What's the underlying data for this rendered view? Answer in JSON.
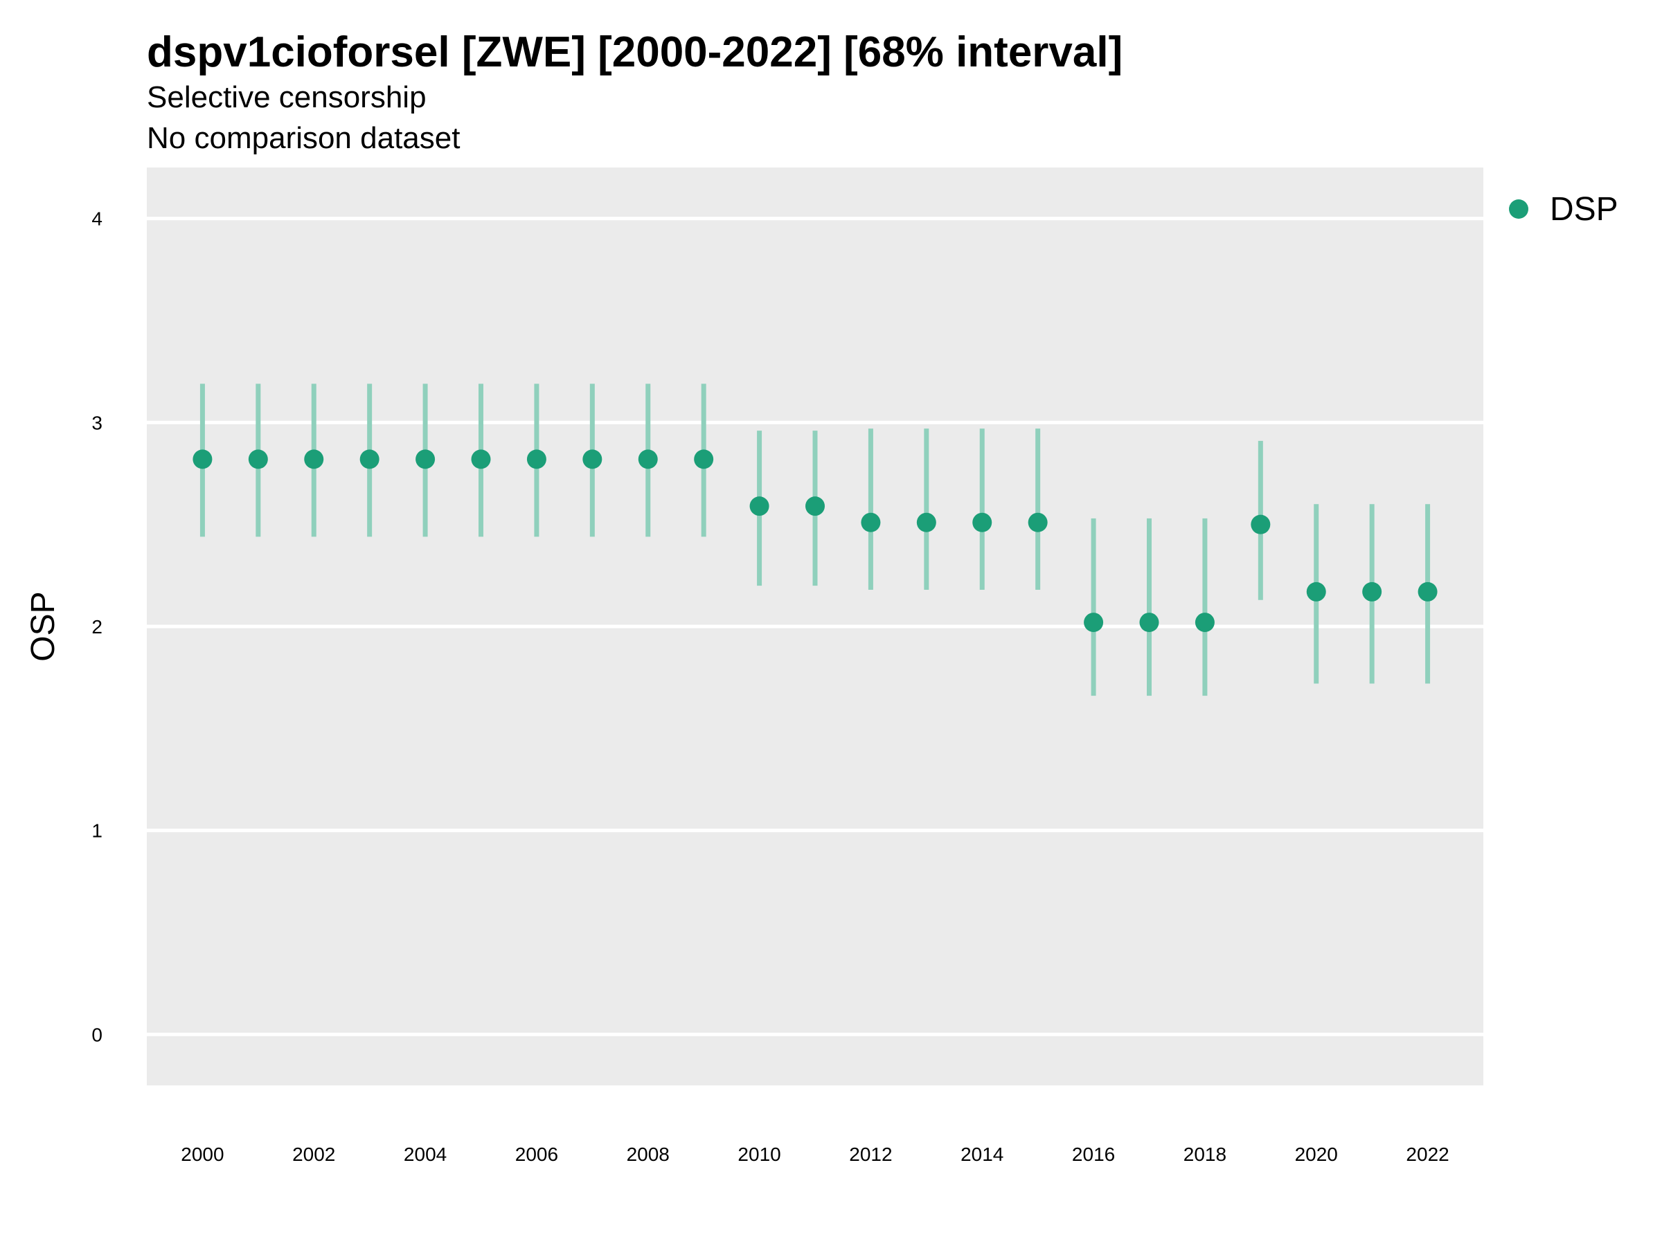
{
  "chart_data": {
    "type": "scatter",
    "title": "dspv1cioforsel [ZWE] [2000-2022] [68% interval]",
    "subtitle": "Selective censorship",
    "subtitle2": "No comparison dataset",
    "xlabel": "",
    "ylabel": "OSP",
    "ylim": [
      -0.25,
      4.25
    ],
    "yticks": [
      0,
      1,
      2,
      3,
      4
    ],
    "xlim": [
      1999,
      2023
    ],
    "xticks": [
      2000,
      2002,
      2004,
      2006,
      2008,
      2010,
      2012,
      2014,
      2016,
      2018,
      2020,
      2022
    ],
    "grid": true,
    "legend_position": "right",
    "colors": {
      "point": "#1b9e77",
      "interval": "#8fd0bc",
      "panel": "#ebebeb",
      "grid": "#ffffff"
    },
    "series": [
      {
        "name": "DSP",
        "x": [
          2000,
          2001,
          2002,
          2003,
          2004,
          2005,
          2006,
          2007,
          2008,
          2009,
          2010,
          2011,
          2012,
          2013,
          2014,
          2015,
          2016,
          2017,
          2018,
          2019,
          2020,
          2021,
          2022
        ],
        "y": [
          2.82,
          2.82,
          2.82,
          2.82,
          2.82,
          2.82,
          2.82,
          2.82,
          2.82,
          2.82,
          2.59,
          2.59,
          2.51,
          2.51,
          2.51,
          2.51,
          2.02,
          2.02,
          2.02,
          2.5,
          2.17,
          2.17,
          2.17
        ],
        "lower": [
          2.44,
          2.44,
          2.44,
          2.44,
          2.44,
          2.44,
          2.44,
          2.44,
          2.44,
          2.44,
          2.2,
          2.2,
          2.18,
          2.18,
          2.18,
          2.18,
          1.66,
          1.66,
          1.66,
          2.13,
          1.72,
          1.72,
          1.72
        ],
        "upper": [
          3.19,
          3.19,
          3.19,
          3.19,
          3.19,
          3.19,
          3.19,
          3.19,
          3.19,
          3.19,
          2.96,
          2.96,
          2.97,
          2.97,
          2.97,
          2.97,
          2.53,
          2.53,
          2.53,
          2.91,
          2.6,
          2.6,
          2.6
        ]
      }
    ]
  }
}
